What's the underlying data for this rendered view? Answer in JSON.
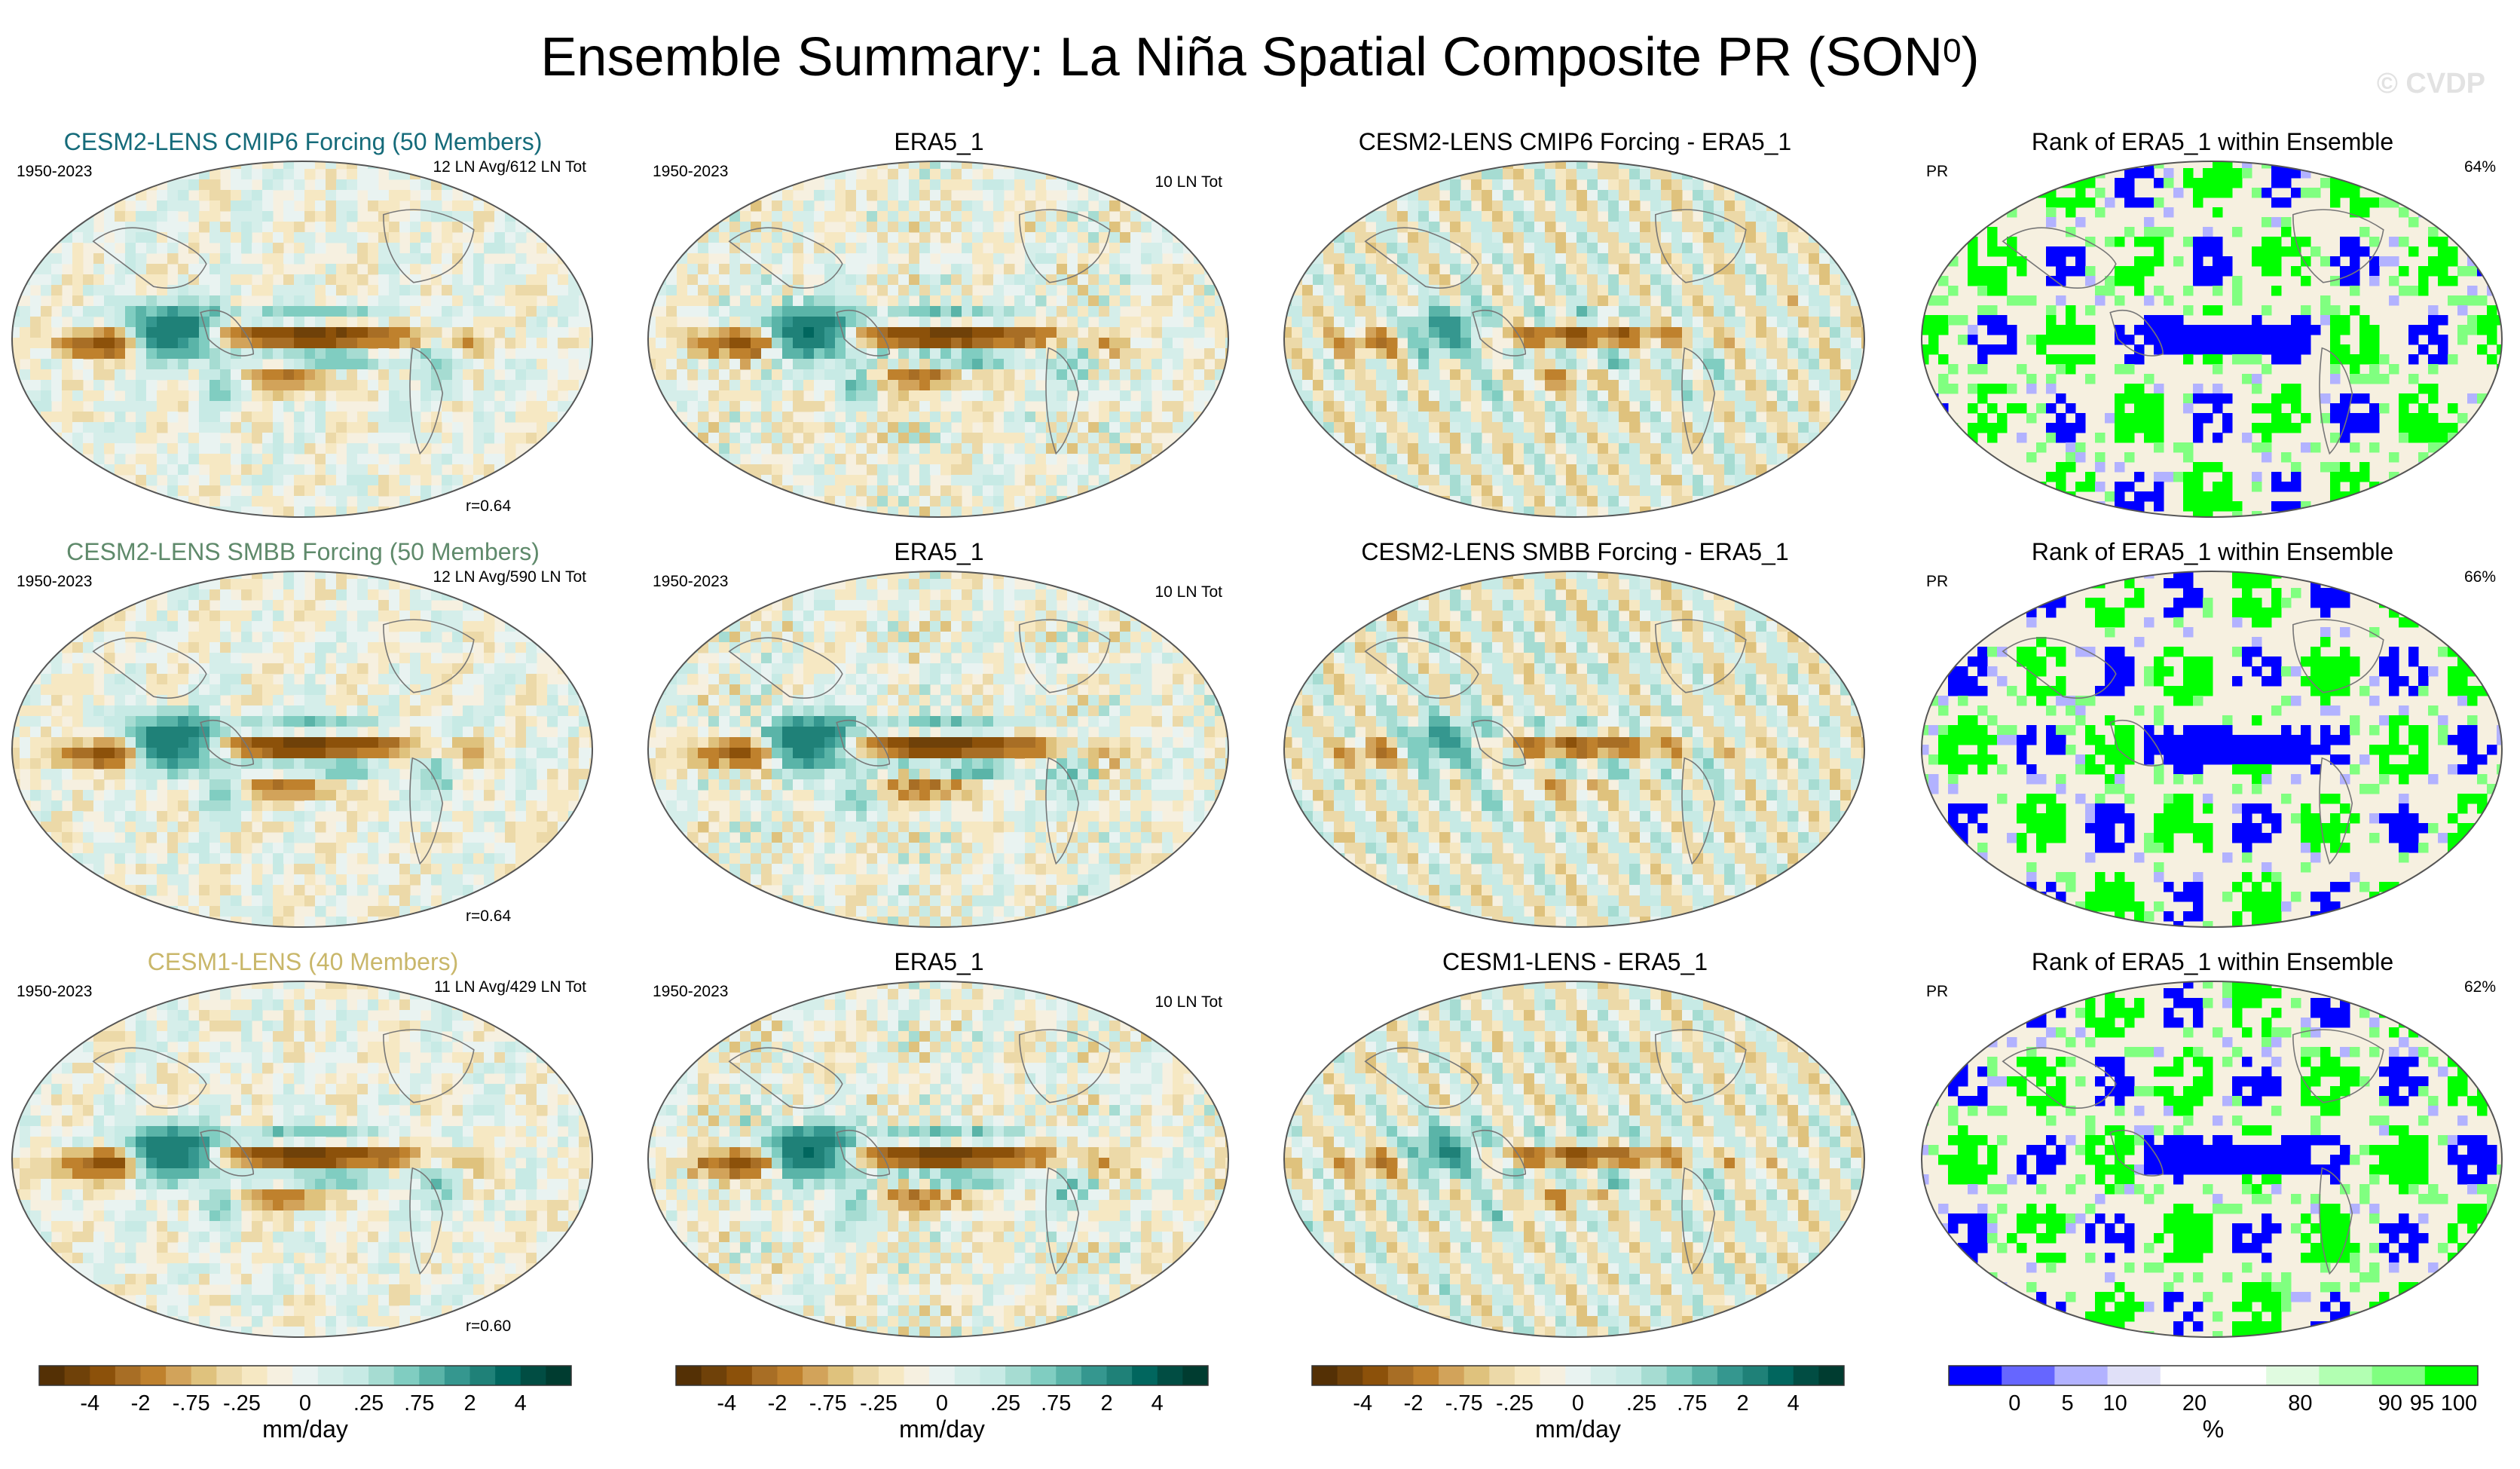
{
  "title": {
    "main": "Ensemble Summary: La Niña Spatial Composite PR (SON",
    "superscript": "0",
    "close": ")"
  },
  "watermark": "© CVDP",
  "chart_data": [
    {
      "type": "map",
      "row": 0,
      "col": 0,
      "title": "CESM2-LENS CMIP6 Forcing (50 Members)",
      "title_color": "#156b7a",
      "left": "1950-2023",
      "right": "12 LN Avg/612 LN Tot",
      "corr": "r=0.64",
      "palette": "diverging",
      "seed": 11
    },
    {
      "type": "map",
      "row": 0,
      "col": 1,
      "title": "ERA5_1",
      "title_color": "#000000",
      "left": "1950-2023",
      "right": "10 LN Tot",
      "corr": "",
      "palette": "diverging",
      "seed": 23
    },
    {
      "type": "map",
      "row": 0,
      "col": 2,
      "title": "CESM2-LENS CMIP6 Forcing - ERA5_1",
      "title_color": "#000000",
      "left": "",
      "right": "",
      "corr": "",
      "palette": "diverging",
      "seed": 37
    },
    {
      "type": "map",
      "row": 0,
      "col": 3,
      "title": "Rank of ERA5_1 within Ensemble",
      "title_color": "#000000",
      "left": "PR",
      "right": "64%",
      "corr": "",
      "palette": "rank",
      "seed": 41
    },
    {
      "type": "map",
      "row": 1,
      "col": 0,
      "title": "CESM2-LENS SMBB Forcing (50 Members)",
      "title_color": "#5f8a6b",
      "left": "1950-2023",
      "right": "12 LN Avg/590 LN Tot",
      "corr": "r=0.64",
      "palette": "diverging",
      "seed": 53
    },
    {
      "type": "map",
      "row": 1,
      "col": 1,
      "title": "ERA5_1",
      "title_color": "#000000",
      "left": "1950-2023",
      "right": "10 LN Tot",
      "corr": "",
      "palette": "diverging",
      "seed": 67
    },
    {
      "type": "map",
      "row": 1,
      "col": 2,
      "title": "CESM2-LENS SMBB Forcing - ERA5_1",
      "title_color": "#000000",
      "left": "",
      "right": "",
      "corr": "",
      "palette": "diverging",
      "seed": 71
    },
    {
      "type": "map",
      "row": 1,
      "col": 3,
      "title": "Rank of ERA5_1 within Ensemble",
      "title_color": "#000000",
      "left": "PR",
      "right": "66%",
      "corr": "",
      "palette": "rank",
      "seed": 83
    },
    {
      "type": "map",
      "row": 2,
      "col": 0,
      "title": "CESM1-LENS (40 Members)",
      "title_color": "#c9b76a",
      "left": "1950-2023",
      "right": "11 LN Avg/429 LN Tot",
      "corr": "r=0.60",
      "palette": "diverging",
      "seed": 97
    },
    {
      "type": "map",
      "row": 2,
      "col": 1,
      "title": "ERA5_1",
      "title_color": "#000000",
      "left": "1950-2023",
      "right": "10 LN Tot",
      "corr": "",
      "palette": "diverging",
      "seed": 101
    },
    {
      "type": "map",
      "row": 2,
      "col": 2,
      "title": "CESM1-LENS - ERA5_1",
      "title_color": "#000000",
      "left": "",
      "right": "",
      "corr": "",
      "palette": "diverging",
      "seed": 113
    },
    {
      "type": "map",
      "row": 2,
      "col": 3,
      "title": "Rank of ERA5_1 within Ensemble",
      "title_color": "#000000",
      "left": "PR",
      "right": "62%",
      "corr": "",
      "palette": "rank",
      "seed": 127
    }
  ],
  "colorbars": {
    "diverging": {
      "colors": [
        "#543005",
        "#6f4109",
        "#8c510a",
        "#a86e25",
        "#bf812d",
        "#d2a35a",
        "#dfc27d",
        "#ecd9a8",
        "#f6e8c3",
        "#f6f0e0",
        "#e9f3f1",
        "#d5eeea",
        "#c7eae5",
        "#a6dcd2",
        "#80cdc1",
        "#5ab4a8",
        "#35978f",
        "#1f8178",
        "#01665e",
        "#014d43",
        "#003c30"
      ],
      "labels": [
        "-4",
        "-2",
        "-.75",
        "-.25",
        "0",
        ".25",
        ".75",
        "2",
        "4"
      ],
      "unit": "mm/day"
    },
    "rank": {
      "colors": [
        "#0000ff",
        "#6666ff",
        "#b2b2ff",
        "#e0e0f8",
        "#ffffff",
        "#ffffff",
        "#e0fbe0",
        "#b2ffb2",
        "#80ff80",
        "#00ff00"
      ],
      "labels": [
        "0",
        "5",
        "10",
        "20",
        "80",
        "90",
        "95",
        "100"
      ],
      "unit": "%"
    }
  }
}
